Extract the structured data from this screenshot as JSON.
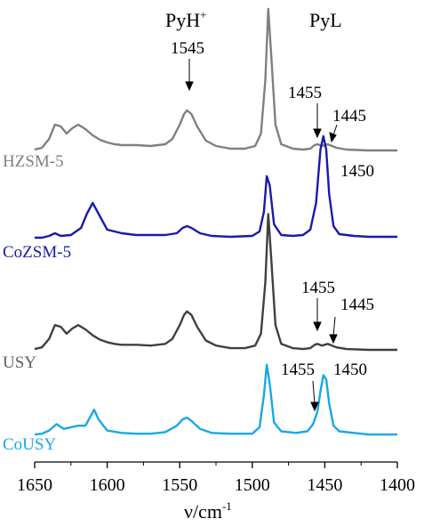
{
  "chart_data": {
    "type": "line",
    "xlabel": "ν/cm",
    "xlabel_sup": "-1",
    "xlim": [
      1650,
      1400
    ],
    "x_ticks": [
      1650,
      1600,
      1550,
      1500,
      1450,
      1400
    ],
    "x_tick_labels": [
      "1650",
      "1600",
      "1550",
      "1500",
      "1450",
      "1400"
    ],
    "grid": false,
    "series": [
      {
        "name": "HZSM-5",
        "color": "#808080",
        "x": [
          1655,
          1645,
          1640,
          1636,
          1632,
          1628,
          1624,
          1620,
          1615,
          1610,
          1605,
          1600,
          1595,
          1590,
          1580,
          1570,
          1560,
          1555,
          1550,
          1547,
          1545,
          1542,
          1538,
          1532,
          1525,
          1515,
          1505,
          1498,
          1494,
          1491,
          1489,
          1487,
          1484,
          1480,
          1472,
          1465,
          1460,
          1457,
          1455,
          1452,
          1448,
          1445,
          1442,
          1435,
          1420,
          1400
        ],
        "y": [
          2,
          4,
          14,
          30,
          28,
          20,
          26,
          30,
          25,
          18,
          13,
          10,
          8,
          7,
          7,
          6,
          8,
          14,
          30,
          42,
          46,
          42,
          28,
          12,
          6,
          3,
          3,
          6,
          20,
          80,
          160,
          110,
          30,
          8,
          3,
          2,
          3,
          7,
          8,
          6,
          8,
          6,
          4,
          2,
          1,
          1
        ]
      },
      {
        "name": "CoZSM-5",
        "color": "#1a1aaa",
        "x": [
          1655,
          1645,
          1640,
          1636,
          1632,
          1625,
          1618,
          1614,
          1610,
          1606,
          1600,
          1590,
          1580,
          1570,
          1560,
          1552,
          1548,
          1545,
          1542,
          1536,
          1528,
          1515,
          1500,
          1495,
          1492,
          1490,
          1488,
          1485,
          1480,
          1472,
          1465,
          1460,
          1456,
          1453,
          1451,
          1449,
          1447,
          1444,
          1440,
          1430,
          1420,
          1400
        ],
        "y": [
          1,
          1,
          3,
          6,
          3,
          4,
          12,
          28,
          40,
          28,
          10,
          6,
          4,
          4,
          4,
          6,
          12,
          14,
          12,
          6,
          3,
          2,
          3,
          8,
          30,
          70,
          60,
          16,
          4,
          3,
          4,
          10,
          40,
          100,
          115,
          100,
          50,
          14,
          5,
          3,
          2,
          2
        ]
      },
      {
        "name": "USY",
        "color": "#404040",
        "x": [
          1655,
          1645,
          1640,
          1636,
          1632,
          1628,
          1624,
          1620,
          1615,
          1610,
          1605,
          1600,
          1595,
          1590,
          1580,
          1570,
          1560,
          1555,
          1550,
          1547,
          1545,
          1542,
          1538,
          1532,
          1525,
          1515,
          1505,
          1498,
          1494,
          1491,
          1489,
          1487,
          1484,
          1480,
          1472,
          1465,
          1460,
          1457,
          1455,
          1452,
          1448,
          1445,
          1442,
          1435,
          1420,
          1400
        ],
        "y": [
          2,
          4,
          14,
          30,
          28,
          20,
          26,
          30,
          25,
          18,
          13,
          10,
          8,
          7,
          7,
          6,
          8,
          14,
          30,
          42,
          46,
          42,
          28,
          12,
          6,
          3,
          3,
          6,
          20,
          80,
          160,
          110,
          30,
          8,
          3,
          2,
          3,
          7,
          8,
          6,
          8,
          6,
          4,
          2,
          1,
          1
        ]
      },
      {
        "name": "CoUSY",
        "color": "#1aa7e6",
        "x": [
          1655,
          1645,
          1640,
          1635,
          1630,
          1625,
          1620,
          1615,
          1612,
          1609,
          1606,
          1600,
          1590,
          1580,
          1570,
          1560,
          1552,
          1548,
          1545,
          1542,
          1536,
          1528,
          1515,
          1500,
          1495,
          1492,
          1490,
          1488,
          1485,
          1480,
          1470,
          1462,
          1458,
          1455,
          1453,
          1451,
          1449,
          1447,
          1444,
          1440,
          1430,
          1420,
          1400
        ],
        "y": [
          1,
          2,
          6,
          14,
          8,
          10,
          12,
          12,
          22,
          32,
          20,
          6,
          3,
          2,
          2,
          4,
          12,
          20,
          22,
          18,
          8,
          3,
          2,
          2,
          10,
          50,
          88,
          65,
          16,
          5,
          3,
          5,
          14,
          30,
          55,
          75,
          70,
          40,
          12,
          5,
          3,
          1,
          1
        ]
      }
    ],
    "annotations": [
      {
        "text": "PyH",
        "sup": "+",
        "x": 1545
      },
      {
        "text": "1545",
        "x": 1545
      },
      {
        "text": "PyL",
        "x": 1455
      },
      {
        "text": "1455",
        "x": 1455
      },
      {
        "text": "1445",
        "x": 1445
      },
      {
        "text": "1450",
        "x": 1450
      },
      {
        "text": "1455",
        "x": 1455
      },
      {
        "text": "1445",
        "x": 1445
      },
      {
        "text": "1455",
        "x": 1455
      },
      {
        "text": "1450",
        "x": 1450
      }
    ]
  }
}
